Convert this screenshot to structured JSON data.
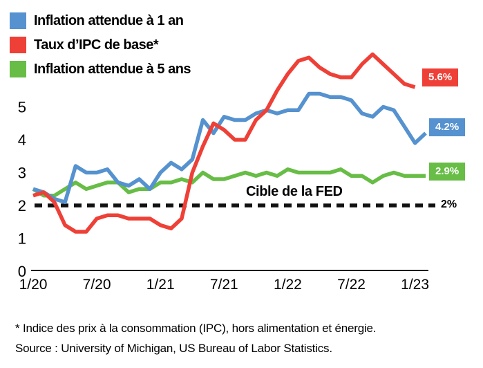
{
  "chart_data": {
    "type": "line",
    "title": "",
    "x_tick_labels": [
      "1/20",
      "7/20",
      "1/21",
      "7/21",
      "1/22",
      "7/22",
      "1/23"
    ],
    "x_tick_indices": [
      0,
      6,
      12,
      18,
      24,
      30,
      36
    ],
    "n_points": 38,
    "yticks": [
      0,
      1,
      2,
      3,
      4,
      5
    ],
    "ylim": [
      0,
      6.9
    ],
    "grid": false,
    "legend_position": "top-left",
    "series": [
      {
        "name": "Inflation attendue à 1 an",
        "color": "#5592cf",
        "end_label": "4.2%",
        "values": [
          2.5,
          2.4,
          2.2,
          2.1,
          3.2,
          3.0,
          3.0,
          3.1,
          2.7,
          2.6,
          2.8,
          2.5,
          3.0,
          3.3,
          3.1,
          3.4,
          4.6,
          4.2,
          4.7,
          4.6,
          4.6,
          4.8,
          4.9,
          4.8,
          4.9,
          4.9,
          5.4,
          5.4,
          5.3,
          5.3,
          5.2,
          4.8,
          4.7,
          5.0,
          4.9,
          4.4,
          3.9,
          4.2
        ]
      },
      {
        "name": "Taux d’IPC de base*",
        "color": "#ee4037",
        "end_label": "5.6%",
        "values": [
          2.3,
          2.4,
          2.1,
          1.4,
          1.2,
          1.2,
          1.6,
          1.7,
          1.7,
          1.6,
          1.6,
          1.6,
          1.4,
          1.3,
          1.6,
          3.0,
          3.8,
          4.5,
          4.3,
          4.0,
          4.0,
          4.6,
          4.9,
          5.5,
          6.0,
          6.4,
          6.5,
          6.2,
          6.0,
          5.9,
          5.9,
          6.3,
          6.6,
          6.3,
          6.0,
          5.7,
          5.6
        ]
      },
      {
        "name": "Inflation attendue à 5 ans",
        "color": "#67bd45",
        "end_label": "2.9%",
        "values": [
          2.5,
          2.3,
          2.3,
          2.5,
          2.7,
          2.5,
          2.6,
          2.7,
          2.7,
          2.4,
          2.5,
          2.5,
          2.7,
          2.7,
          2.8,
          2.7,
          3.0,
          2.8,
          2.8,
          2.9,
          3.0,
          2.9,
          3.0,
          2.9,
          3.1,
          3.0,
          3.0,
          3.0,
          3.0,
          3.1,
          2.9,
          2.9,
          2.7,
          2.9,
          3.0,
          2.9,
          2.9,
          2.9
        ]
      }
    ],
    "target_line": {
      "value": 2,
      "label": "Cible de la FED",
      "end_label": "2%",
      "color": "#111111"
    }
  },
  "footer": {
    "line1": "* Indice des prix à la consommation (IPC), hors alimentation et énergie.",
    "line2": "Source : University of Michigan, US Bureau of Labor Statistics."
  }
}
